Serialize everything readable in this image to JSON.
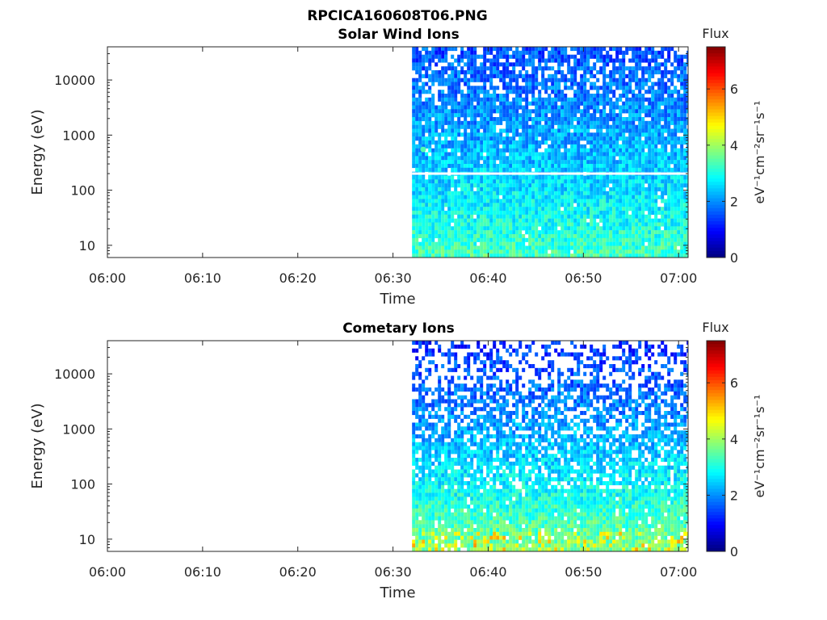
{
  "figure": {
    "title": "RPCICA160608T06.PNG"
  },
  "chart_data": [
    {
      "type": "heatmap",
      "title": "Solar Wind Ions",
      "xlabel": "Time",
      "ylabel": "Energy (eV)",
      "x_ticks": [
        "06:00",
        "06:10",
        "06:20",
        "06:30",
        "06:40",
        "06:50",
        "07:00"
      ],
      "xlim": [
        "06:00",
        "07:01"
      ],
      "y_scale": "log",
      "y_ticks": [
        10,
        100,
        1000,
        10000
      ],
      "y_tick_labels": [
        "10",
        "100",
        "1000",
        "10000"
      ],
      "ylim": [
        6,
        40000
      ],
      "data_start": "06:32",
      "gap_energy_eV": 200,
      "colorbar": {
        "label": "Flux",
        "unit": "eV⁻¹cm⁻²sr⁻¹s⁻¹",
        "range": [
          0,
          7.5
        ],
        "ticks": [
          0,
          2,
          4,
          6
        ],
        "colormap": "jet"
      },
      "flux_profile": {
        "low_energy_level": 3.4,
        "high_energy_level": 1.5,
        "spot": {
          "time": "06:33",
          "energy_eV": 550,
          "level": 3.4
        }
      }
    },
    {
      "type": "heatmap",
      "title": "Cometary Ions",
      "xlabel": "Time",
      "ylabel": "Energy (eV)",
      "x_ticks": [
        "06:00",
        "06:10",
        "06:20",
        "06:30",
        "06:40",
        "06:50",
        "07:00"
      ],
      "xlim": [
        "06:00",
        "07:01"
      ],
      "y_scale": "log",
      "y_ticks": [
        10,
        100,
        1000,
        10000
      ],
      "y_tick_labels": [
        "10",
        "100",
        "1000",
        "10000"
      ],
      "ylim": [
        6,
        40000
      ],
      "data_start": "06:32",
      "colorbar": {
        "label": "Flux",
        "unit": "eV⁻¹cm⁻²sr⁻¹s⁻¹",
        "range": [
          0,
          7.5
        ],
        "ticks": [
          0,
          2,
          4,
          6
        ],
        "colormap": "jet"
      },
      "flux_profile": {
        "low_energy_level": 3.9,
        "high_energy_level": 1.2
      }
    }
  ]
}
